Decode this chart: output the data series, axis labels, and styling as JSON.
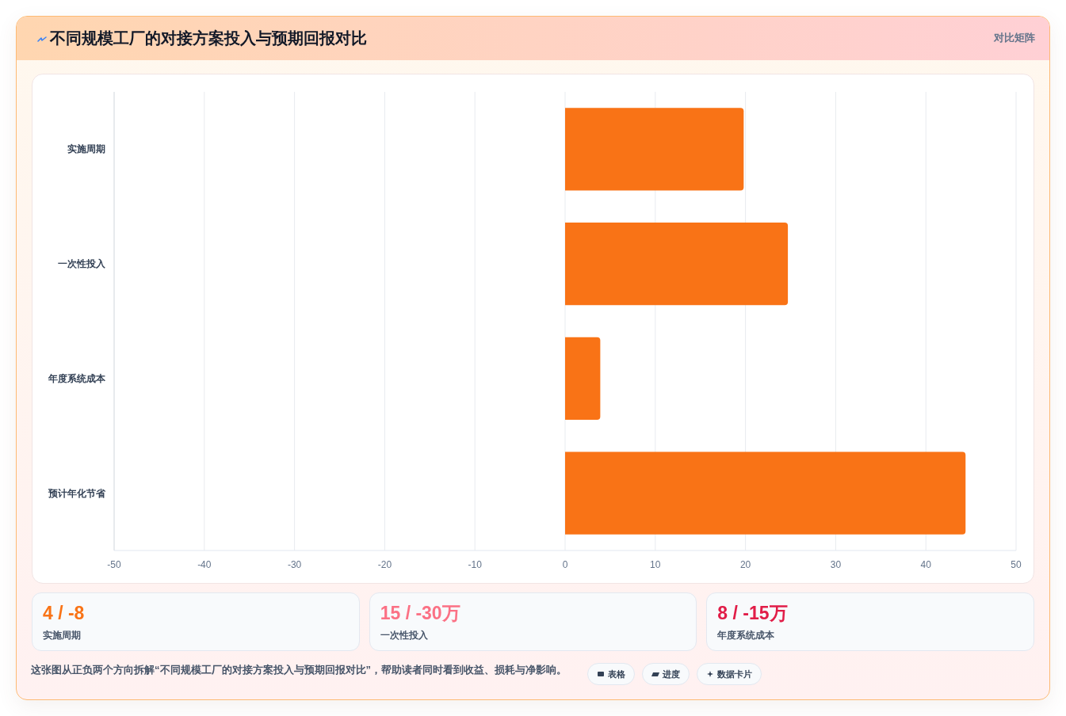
{
  "chart_data": [
    {
      "type": "bar",
      "orientation": "horizontal",
      "title": "不同规模工厂的对接方案投入与预期回报对比",
      "categories": [
        "实施周期",
        "一次性投入",
        "年度系统成本",
        "预计年化节省"
      ],
      "values": [
        19.8,
        24.7,
        3.9,
        44.4
      ],
      "color": "#f97316",
      "xlim": [
        -50,
        50
      ],
      "xticks": [
        -50,
        -40,
        -30,
        -20,
        -10,
        0,
        10,
        20,
        30,
        40,
        50
      ],
      "grid": "x",
      "annotations": [
        "对比矩阵",
        "这张图从正负两个方向拆解“不同规模工厂的对接方案投入与预期回报对比”，帮助读者同时看到收益、损耗与净影响。",
        "表格",
        "进度",
        "数据卡片"
      ]
    },
    {
      "type": "other",
      "title": "4 / -8",
      "subtitle": "实施周期",
      "color": "#f97316"
    },
    {
      "type": "other",
      "title": "15 / -30万",
      "subtitle": "一次性投入",
      "color": "#fb7185"
    },
    {
      "type": "other",
      "title": "8 / -15万",
      "subtitle": "年度系统成本",
      "color": "#e11d48"
    }
  ]
}
